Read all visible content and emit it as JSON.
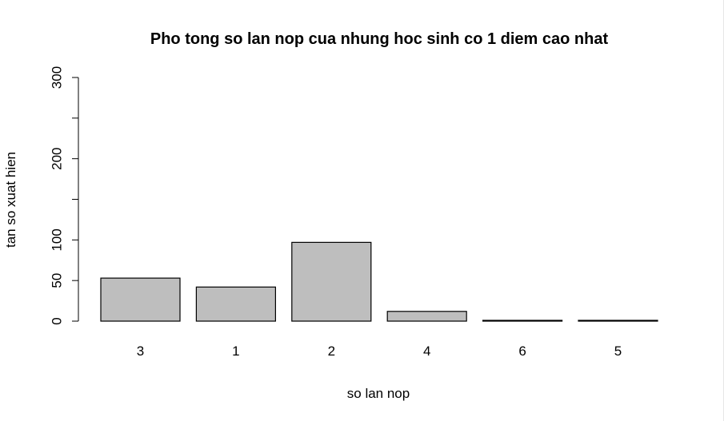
{
  "chart_data": {
    "type": "bar",
    "title": "Pho tong so lan nop cua nhung hoc sinh co 1 diem cao nhat",
    "xlabel": "so lan nop",
    "ylabel": "tan so xuat hien",
    "categories": [
      "3",
      "1",
      "2",
      "4",
      "6",
      "5"
    ],
    "values": [
      53,
      42,
      97,
      12,
      1,
      1
    ],
    "ylim": [
      0,
      300
    ],
    "yticks": [
      0,
      50,
      100,
      150,
      200,
      250,
      300
    ],
    "ytick_labels": [
      "0",
      "50",
      "100",
      "",
      "200",
      "",
      "300"
    ],
    "bar_color": "#bebebe",
    "bar_border_color": "#000000",
    "grid": false,
    "legend": "none"
  }
}
